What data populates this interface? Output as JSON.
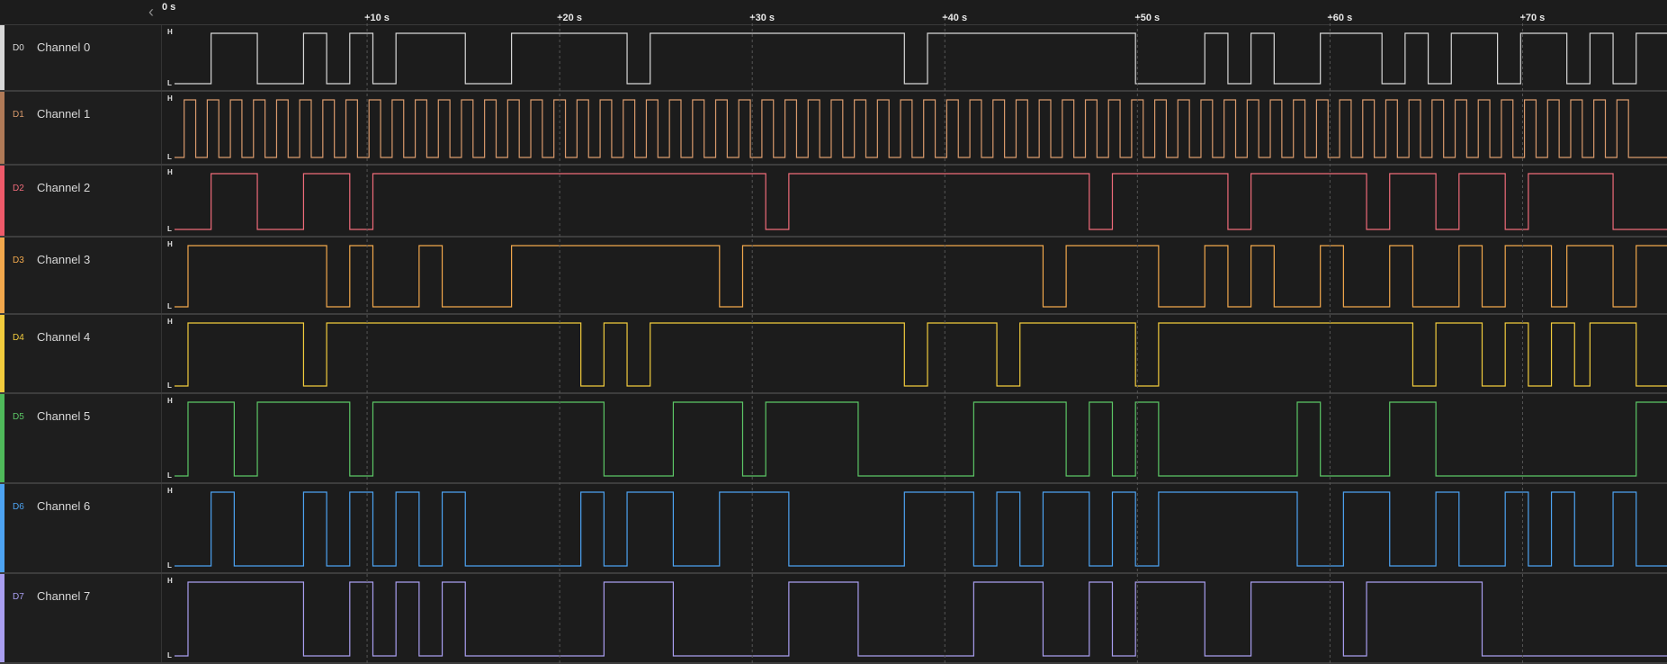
{
  "ruler": {
    "start_label": "0 s",
    "ticks": [
      "+10 s",
      "+20 s",
      "+30 s",
      "+40 s",
      "+50 s",
      "+60 s",
      "+70 s"
    ],
    "tick_times": [
      10,
      20,
      30,
      40,
      50,
      60,
      70
    ],
    "visible_range_s": [
      0,
      77.5
    ]
  },
  "level_high_label": "H",
  "level_low_label": "L",
  "channels": [
    {
      "id": "D0",
      "name": "Channel 0",
      "color": "#d8d8d8",
      "strip": "#d8d8d8",
      "initial": 0,
      "edges": [
        1.9,
        4.3,
        6.7,
        7.9,
        9.1,
        10.3,
        11.5,
        15.1,
        17.5,
        23.5,
        24.7,
        37.9,
        39.1,
        49.9,
        53.5,
        54.7,
        55.9,
        57.1,
        59.5,
        62.7,
        63.9,
        65.1,
        66.3,
        68.7,
        69.9,
        72.3,
        73.5,
        74.7,
        75.9
      ]
    },
    {
      "id": "D1",
      "name": "Channel 1",
      "color": "#d99a6c",
      "strip": "#b07a57",
      "initial": 0,
      "clock": true
    },
    {
      "id": "D2",
      "name": "Channel 2",
      "color": "#ef6b7a",
      "strip": "#ef5a6a",
      "initial": 0,
      "edges": [
        1.9,
        4.3,
        6.7,
        9.1,
        10.3,
        30.7,
        31.9,
        47.5,
        48.7,
        54.7,
        55.9,
        61.9,
        63.1,
        65.5,
        66.7,
        69.1,
        70.3,
        74.7
      ]
    },
    {
      "id": "D3",
      "name": "Channel 3",
      "color": "#f2a84c",
      "strip": "#f2a84c",
      "initial": 0,
      "edges": [
        0.7,
        7.9,
        9.1,
        10.3,
        12.7,
        13.9,
        17.5,
        28.3,
        29.5,
        45.1,
        46.3,
        51.1,
        53.5,
        54.7,
        55.9,
        57.1,
        59.5,
        60.7,
        63.1,
        64.3,
        66.7,
        67.9,
        69.1,
        71.5,
        72.3,
        74.7,
        75.9
      ]
    },
    {
      "id": "D4",
      "name": "Channel 4",
      "color": "#f2cc3d",
      "strip": "#f2cc3d",
      "initial": 0,
      "edges": [
        0.7,
        6.7,
        7.9,
        21.1,
        22.3,
        23.5,
        24.7,
        37.9,
        39.1,
        42.7,
        43.9,
        49.9,
        51.1,
        64.3,
        65.5,
        67.9,
        69.1,
        70.3,
        71.5,
        72.7,
        73.5,
        75.9
      ]
    },
    {
      "id": "D5",
      "name": "Channel 5",
      "color": "#5cc766",
      "strip": "#4fba5a",
      "initial": 0,
      "edges": [
        0.7,
        3.1,
        4.3,
        9.1,
        10.3,
        22.3,
        25.9,
        29.5,
        30.7,
        35.5,
        41.5,
        46.3,
        47.5,
        48.7,
        49.9,
        51.1,
        58.3,
        59.5,
        63.1,
        65.5,
        75.9
      ]
    },
    {
      "id": "D6",
      "name": "Channel 6",
      "color": "#4da3f2",
      "strip": "#4da3f2",
      "initial": 0,
      "edges": [
        1.9,
        3.1,
        6.7,
        7.9,
        9.1,
        10.3,
        11.5,
        12.7,
        13.9,
        15.1,
        21.1,
        22.3,
        23.5,
        25.9,
        28.3,
        31.9,
        37.9,
        41.5,
        42.7,
        43.9,
        45.1,
        47.5,
        48.7,
        49.9,
        51.1,
        58.3,
        60.7,
        63.1,
        65.5,
        66.7,
        69.1,
        70.3,
        71.5,
        72.7,
        74.7,
        75.9
      ]
    },
    {
      "id": "D7",
      "name": "Channel 7",
      "color": "#a99ef0",
      "strip": "#a99ef0",
      "initial": 0,
      "edges": [
        0.7,
        6.7,
        9.1,
        10.3,
        11.5,
        12.7,
        13.9,
        15.1,
        22.3,
        25.9,
        31.9,
        35.5,
        41.5,
        45.1,
        47.5,
        48.7,
        49.9,
        53.5,
        55.9,
        60.7,
        61.9,
        67.9
      ]
    }
  ]
}
